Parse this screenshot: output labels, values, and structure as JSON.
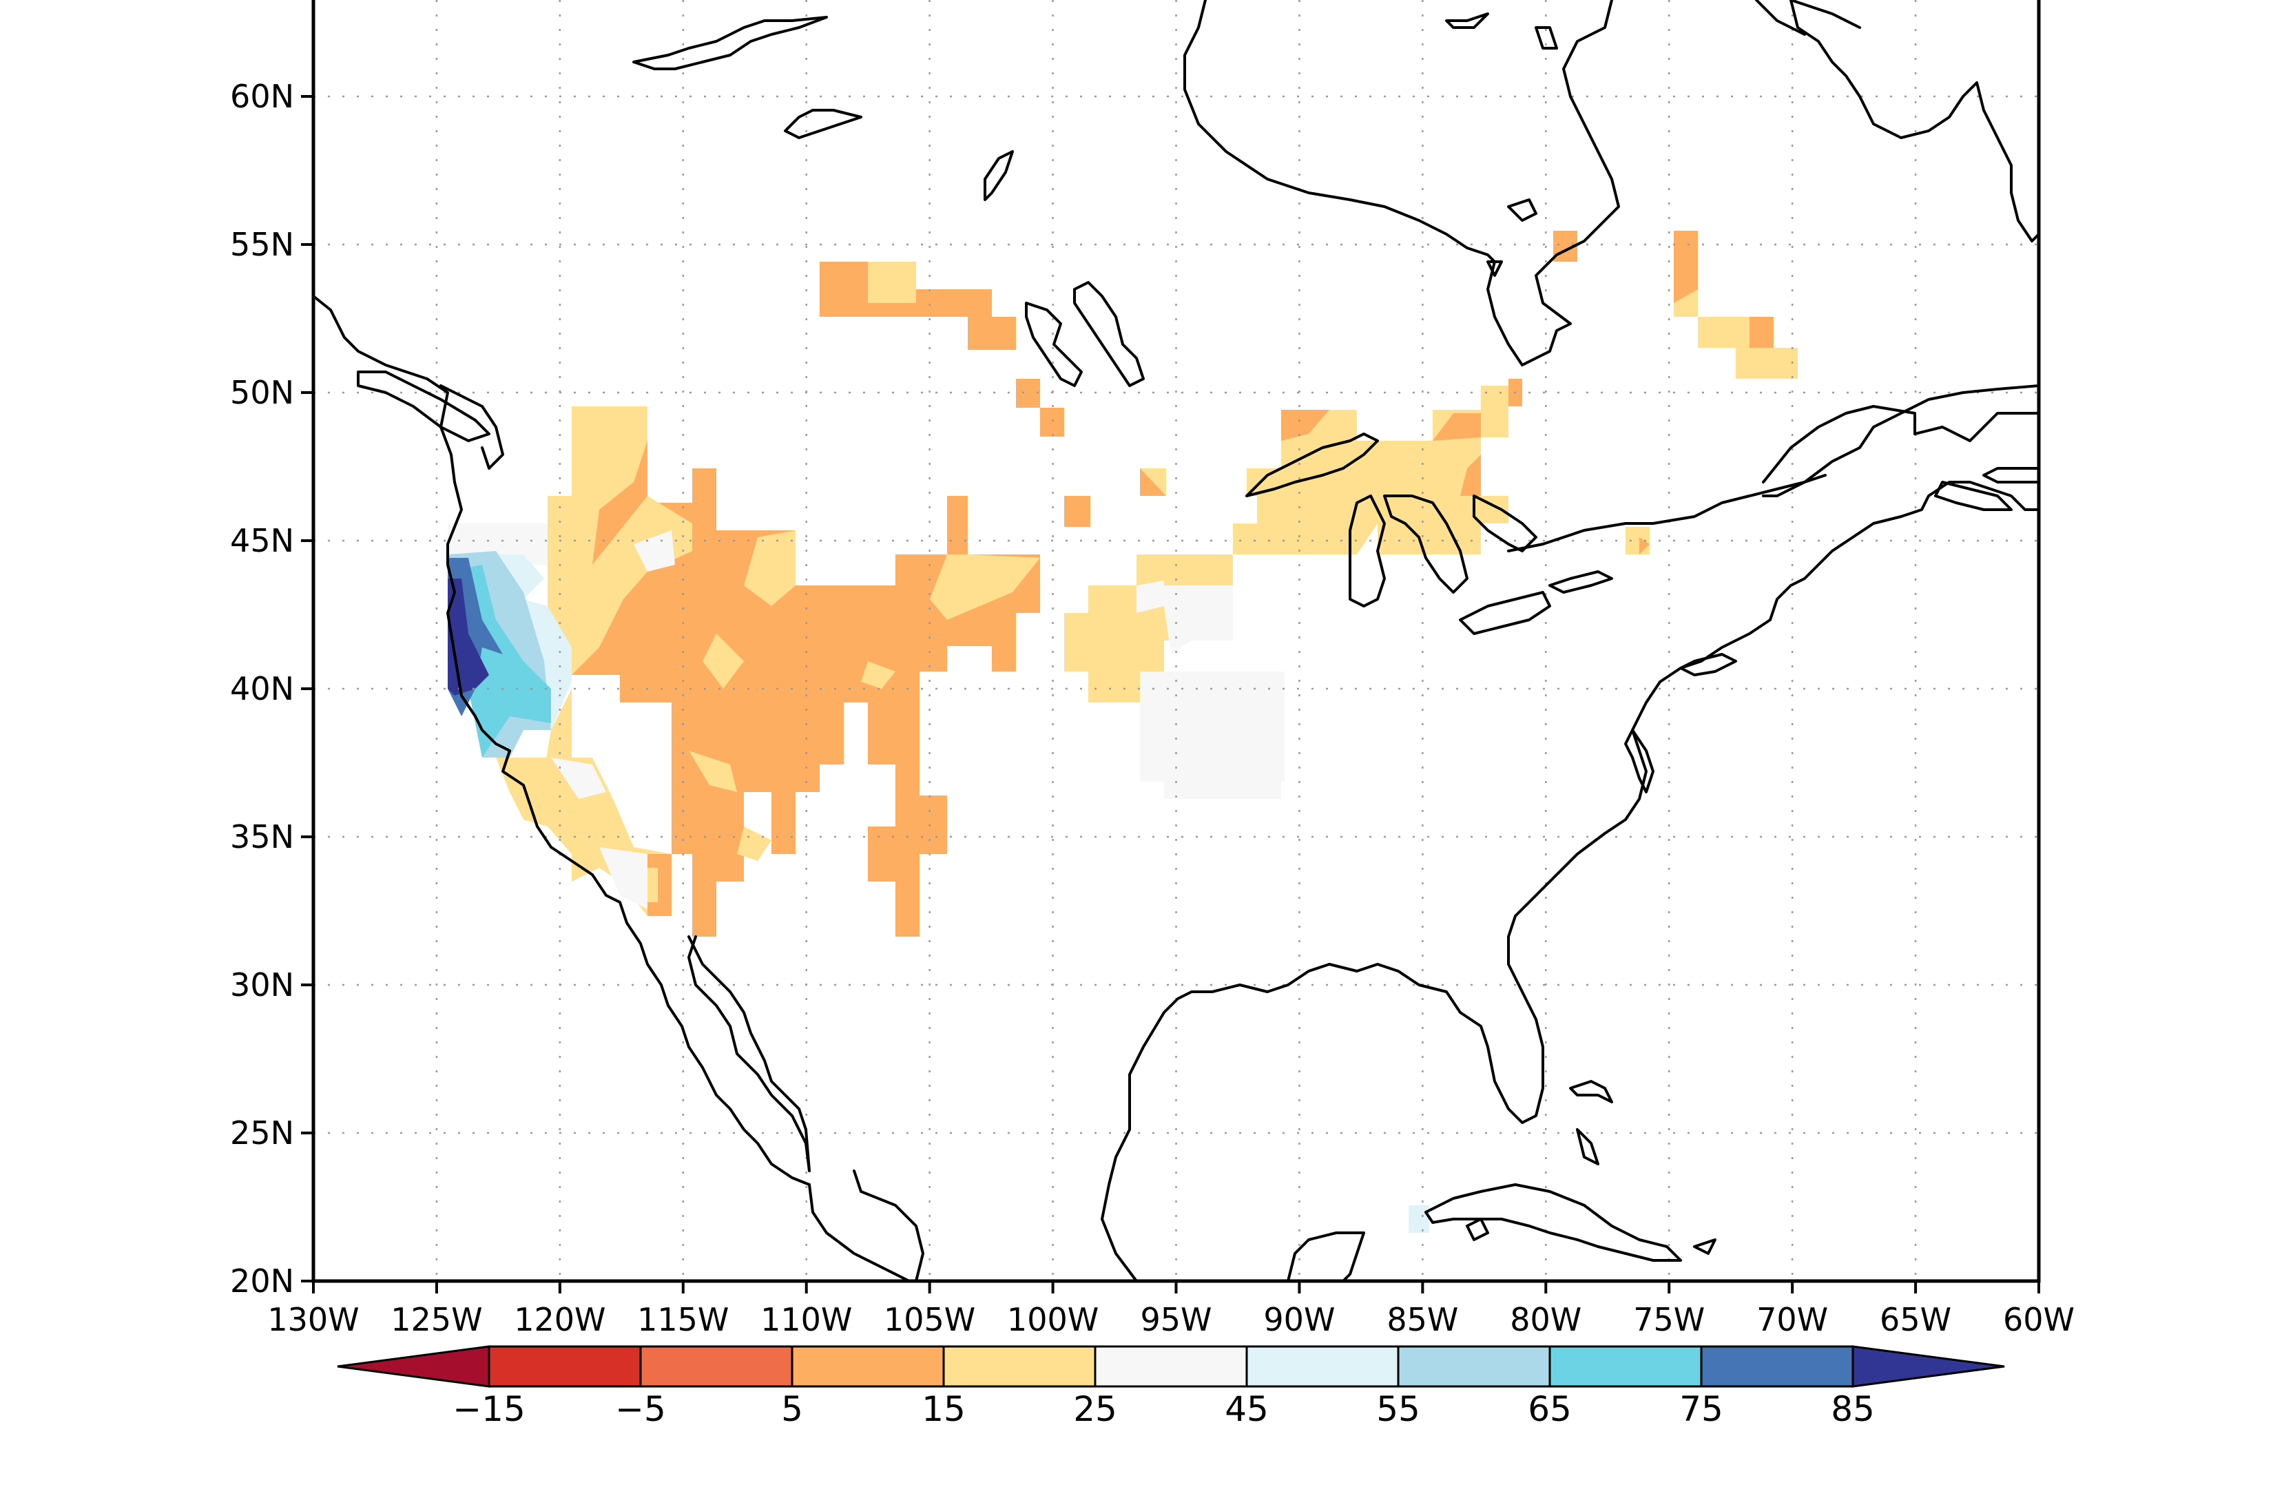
{
  "map": {
    "lat_labels": [
      "60N",
      "55N",
      "50N",
      "45N",
      "40N",
      "35N",
      "30N",
      "25N",
      "20N"
    ],
    "lat_values": [
      60,
      55,
      50,
      45,
      40,
      35,
      30,
      25,
      20
    ],
    "lon_labels": [
      "130W",
      "125W",
      "120W",
      "115W",
      "110W",
      "105W",
      "100W",
      "95W",
      "90W",
      "85W",
      "80W",
      "75W",
      "70W",
      "65W",
      "60W"
    ],
    "lon_values": [
      -130,
      -125,
      -120,
      -115,
      -110,
      -105,
      -100,
      -95,
      -90,
      -85,
      -80,
      -75,
      -70,
      -65,
      -60
    ],
    "extent": {
      "lon_min": -130,
      "lon_max": -60,
      "lat_min": 20,
      "lat_max": 64
    },
    "grid": "dotted"
  },
  "colorbar": {
    "labels": [
      "−15",
      "−5",
      "5",
      "15",
      "25",
      "45",
      "55",
      "65",
      "75",
      "85"
    ],
    "levels": [
      -15,
      -5,
      5,
      15,
      25,
      45,
      55,
      65,
      75,
      85
    ],
    "colors": [
      "#a50f2d",
      "#d73027",
      "#f06d4a",
      "#fdae61",
      "#fee090",
      "#f7f7f7",
      "#e0f3f8",
      "#abd9e9",
      "#6bd3e3",
      "#4575b4",
      "#313695"
    ]
  },
  "chart_data": {
    "type": "heatmap",
    "title": "",
    "xlabel": "",
    "ylabel": "",
    "xlim": [
      -130,
      -60
    ],
    "ylim": [
      20,
      64
    ],
    "cells": [
      {
        "lon": -107.5,
        "lat": 53.5,
        "color": "#fdae61"
      },
      {
        "lon": -102.5,
        "lat": 52.5,
        "color": "#fdae61"
      },
      {
        "lon": -100.5,
        "lat": 49.5,
        "color": "#fdae61"
      },
      {
        "lon": -113.5,
        "lat": 48.0,
        "color": "#fee090"
      },
      {
        "lon": -116.0,
        "lat": 44.5,
        "color": "#fee090"
      },
      {
        "lon": -112.0,
        "lat": 43.0,
        "color": "#fdae61"
      },
      {
        "lon": -105.0,
        "lat": 42.0,
        "color": "#fdae61"
      },
      {
        "lon": -101.5,
        "lat": 43.0,
        "color": "#fee090"
      },
      {
        "lon": -97.0,
        "lat": 42.0,
        "color": "#fee090"
      },
      {
        "lon": -93.5,
        "lat": 38.5,
        "color": "#f7f7f7"
      },
      {
        "lon": -87.0,
        "lat": 46.0,
        "color": "#fee090"
      },
      {
        "lon": -81.5,
        "lat": 46.5,
        "color": "#fee090"
      },
      {
        "lon": -79.5,
        "lat": 54.5,
        "color": "#fdae61"
      },
      {
        "lon": -73.5,
        "lat": 53.0,
        "color": "#fdae61"
      },
      {
        "lon": -71.0,
        "lat": 51.0,
        "color": "#fee090"
      },
      {
        "lon": -76.5,
        "lat": 45.0,
        "color": "#fee090"
      },
      {
        "lon": -122.0,
        "lat": 44.0,
        "color": "#f7f7f7"
      },
      {
        "lon": -123.0,
        "lat": 41.5,
        "color": "#abd9e9"
      },
      {
        "lon": -123.5,
        "lat": 40.5,
        "color": "#6bd3e3"
      },
      {
        "lon": -124.0,
        "lat": 41.0,
        "color": "#313695"
      },
      {
        "lon": -119.0,
        "lat": 36.0,
        "color": "#fee090"
      },
      {
        "lon": -112.0,
        "lat": 35.5,
        "color": "#fdae61"
      },
      {
        "lon": -106.0,
        "lat": 33.5,
        "color": "#fdae61"
      },
      {
        "lon": -104.0,
        "lat": 29.5,
        "color": "#fdae61"
      },
      {
        "lon": -84.5,
        "lat": 21.5,
        "color": "#e0f3f8"
      }
    ]
  }
}
